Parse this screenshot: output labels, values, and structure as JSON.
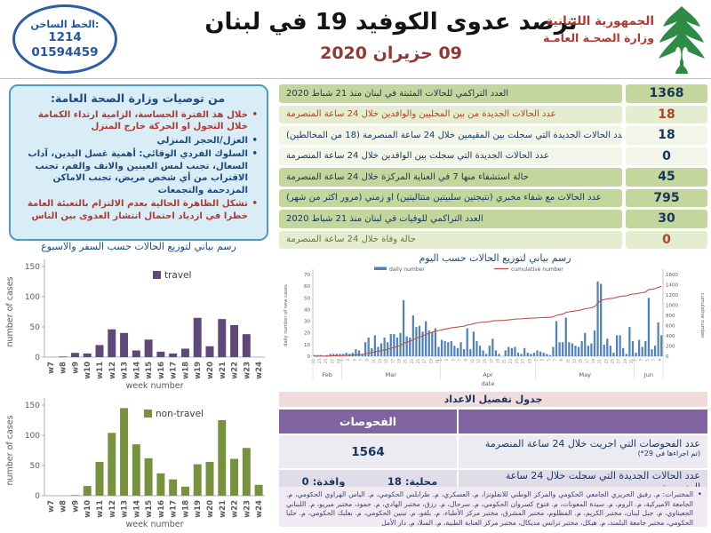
{
  "header": {
    "hotline": {
      "label": "الخط الساخن:",
      "number1": "1214",
      "number2": "01594459"
    },
    "title": "ترصد عدوى الكوفيد 19 في لبنان",
    "date": "09 حزيران 2020",
    "ministry": {
      "line1": "الجمهورية اللبنانية",
      "line2": "وزارة الصحـة العامـة"
    },
    "logo_icon": "cedar-tree-icon"
  },
  "recommendations": {
    "title": "من توصيات وزارة الصحة العامة:",
    "items": [
      {
        "text": "خلال هذ الفترة الحساسة، الزامية ارتداء الكمامة خلال التجول او الحركة خارج المنزل",
        "color": "#b03a30"
      },
      {
        "text": "العزل/الحجر المنزلي",
        "color": "#1f497d"
      },
      {
        "text": "السلوك الفردي الوقائي: أهمية غسل اليدين، آداب السعال، تجنب لمس العينين والانف والفم، تجنب الاقتراب من أي شخص مريض، تجنب الاماكن المزدحمة والتجمعات",
        "color": "#1f497d"
      },
      {
        "text": "تشكل الظاهرة الحالية بعدم الالتزام بالتعبئة العامة خطرا في ازدياد احتمال انتشار العدوى بين الناس",
        "color": "#b03a30"
      }
    ]
  },
  "palette": {
    "tone_dark": "#c3d69b",
    "tone_light": "#e4edcf",
    "tone_lighter": "#f1f6e9",
    "navy": "#17365d",
    "red": "#a8452c",
    "olive": "#5e7a3a",
    "travel_bar": "#5f497a",
    "nontravel_bar": "#76923c",
    "daily_bar": "#4f81bd",
    "cumulative_line": "#c0504d"
  },
  "stats_table": {
    "rows": [
      {
        "label": "العدد التراكمي للحالات المثبتة في لبنان منذ 21 شباط 2020",
        "value": "1368",
        "tone": "dark",
        "label_color": "navy",
        "value_color": "navy"
      },
      {
        "label": "عدد الحالات الجديدة من بين المحليين والوافدين خلال 24 ساعة المنصرمة",
        "value": "18",
        "tone": "light",
        "label_color": "red",
        "value_color": "red"
      },
      {
        "label": "عدد الحالات الجديدة التي سجلت بين المقيمين خلال 24 ساعة المنصرمة (18 من المخالطين)",
        "value": "18",
        "tone": "lighter",
        "label_color": "navy",
        "value_color": "navy"
      },
      {
        "label": "عدد الحالات الجديدة التي سجلت بين الوافدين خلال 24 ساعة المنصرمة",
        "value": "0",
        "tone": "lighter",
        "label_color": "navy",
        "value_color": "navy"
      },
      {
        "label": "حالة استشفاء منها 7 في العناية المركزة خلال 24 ساعة المنصرمة",
        "value": "45",
        "tone": "dark",
        "label_color": "navy",
        "value_color": "navy"
      },
      {
        "label": "عدد الحالات مع شفاء مخبري (نتيجتين سلبيتين متتاليتين) او زمني (مرور اكثر من شهر)",
        "value": "795",
        "tone": "dark",
        "label_color": "navy",
        "value_color": "navy"
      },
      {
        "label": "العدد التراكمي للوفيات في لبنان منذ 21 شباط 2020",
        "value": "30",
        "tone": "dark",
        "label_color": "navy",
        "value_color": "navy"
      },
      {
        "label": "حالة وفاة خلال 24 ساعة المنصرمة",
        "value": "0",
        "tone": "light",
        "label_color": "olive",
        "value_color": "red"
      }
    ]
  },
  "chart_data": [
    {
      "type": "bar",
      "title": "رسم بياني لتوزيع الحالات حسب السفر والاسبوع",
      "legend": "travel",
      "color": "#5f497a",
      "legend_x": 168,
      "categories": [
        "w7",
        "w8",
        "w9",
        "w10",
        "w11",
        "w12",
        "w13",
        "w14",
        "w15",
        "w16",
        "w17",
        "w18",
        "w19",
        "w20",
        "w21",
        "w22",
        "w23",
        "w24"
      ],
      "values": [
        0,
        1,
        7,
        6,
        20,
        46,
        40,
        11,
        29,
        9,
        6,
        14,
        65,
        18,
        63,
        53,
        38,
        0
      ],
      "xlabel": "week number",
      "ylabel": "number of cases",
      "ylim": [
        0,
        150
      ],
      "yticks": [
        0,
        50,
        100,
        150
      ]
    },
    {
      "type": "bar",
      "title": "",
      "legend": "non-travel",
      "color": "#76923c",
      "legend_x": 158,
      "categories": [
        "w7",
        "w8",
        "w9",
        "w10",
        "w11",
        "w12",
        "w13",
        "w14",
        "w15",
        "w16",
        "w17",
        "w18",
        "w19",
        "w20",
        "w21",
        "w22",
        "w23",
        "w24"
      ],
      "values": [
        0,
        0,
        1,
        16,
        56,
        104,
        145,
        85,
        62,
        37,
        27,
        15,
        52,
        56,
        125,
        61,
        79,
        18
      ],
      "xlabel": "week number",
      "ylabel": "number of cases",
      "ylim": [
        0,
        150
      ],
      "yticks": [
        0,
        50,
        100,
        150
      ]
    },
    {
      "type": "bar+line",
      "title": "رسم بياني لتوزيع الحالات حسب اليوم",
      "series": [
        {
          "name": "daily number",
          "type": "bar",
          "color": "#4f81bd"
        },
        {
          "name": "cumulative number",
          "type": "line",
          "color": "#c0504d",
          "derived": "cumulative_sum_of_daily"
        }
      ],
      "months": [
        {
          "label": "Feb",
          "first_day": 21,
          "days": 9
        },
        {
          "label": "Mar",
          "first_day": 1,
          "days": 31
        },
        {
          "label": "Apr",
          "first_day": 1,
          "days": 30
        },
        {
          "label": "May",
          "first_day": 1,
          "days": 31
        },
        {
          "label": "Jun",
          "first_day": 1,
          "days": 9
        }
      ],
      "values": [
        1,
        1,
        1,
        0,
        1,
        2,
        2,
        2,
        2,
        2,
        3,
        2,
        3,
        6,
        5,
        2,
        12,
        16,
        7,
        18,
        8,
        11,
        16,
        12,
        19,
        19,
        16,
        20,
        48,
        17,
        16,
        35,
        25,
        26,
        21,
        30,
        22,
        21,
        24,
        8,
        14,
        13,
        12,
        13,
        9,
        7,
        12,
        6,
        24,
        6,
        21,
        13,
        9,
        5,
        2,
        9,
        15,
        5,
        2,
        0,
        5,
        8,
        7,
        8,
        3,
        2,
        7,
        3,
        2,
        3,
        5,
        4,
        3,
        2,
        1,
        8,
        30,
        12,
        12,
        33,
        12,
        11,
        9,
        8,
        13,
        20,
        9,
        11,
        22,
        64,
        62,
        10,
        15,
        9,
        3,
        18,
        18,
        7,
        2,
        25,
        13,
        3,
        14,
        8,
        13,
        50,
        6,
        9,
        29,
        18
      ],
      "xlabel": "date",
      "ylabel_left": "daily number of new cases",
      "ylabel_right": "cumulative number",
      "ylim_left": [
        0,
        70
      ],
      "yticks_left": [
        0,
        10,
        20,
        30,
        40,
        50,
        60,
        70
      ],
      "ylim_right": [
        0,
        1600
      ],
      "yticks_right": [
        0,
        200,
        400,
        600,
        800,
        1000,
        1200,
        1400,
        1600
      ],
      "cumulative_total": 1368
    }
  ],
  "details_table": {
    "title": "جدول تفصيل الاعداد",
    "header": "الفحوصات",
    "rows": [
      {
        "desc": "عدد الفحوصات التي اجريت خلال 24 ساعة المنصرمة",
        "note": "(تم اجراءها في 29*)",
        "value": "1564"
      },
      {
        "desc": "عدد الحالات الجديدة التي سجلت خلال 24 ساعة المنصرمة",
        "local": "محلية: 18",
        "arrival": "وافدة: 0"
      }
    ]
  },
  "footnote": {
    "text": "المختبرات: م. رفيق الحريري الجامعي الحكومي والمركز الوطني للانفلونزا، م. العسكري، م. طرابلس الحكومي، م. الياس الهراوي الحكومي، م. الجامعة الاميركية، م. الروم، م. سيدة المعونات، م. فتوح كسروان الحكومي، م. سرحال، م. رزق، مختبر الهادي، م. حمود، مختبر ميريو، م. اللبناني الجعيتاوي، م. جبل لبنان، مختبر الكريم، م. المظلوم، مختبر المشرق، مختبر مركز الأطباء، م. بلفو، م. تبنين الحكومي، م. بعلبك الحكومي، م. حلبا الحكومي، مختبر جامعة البلمند، م. هيكل، مختبر ترانس مديكال، مختبر مركز العناية الطبية، م. المنلا، م. دار الأمل"
  }
}
